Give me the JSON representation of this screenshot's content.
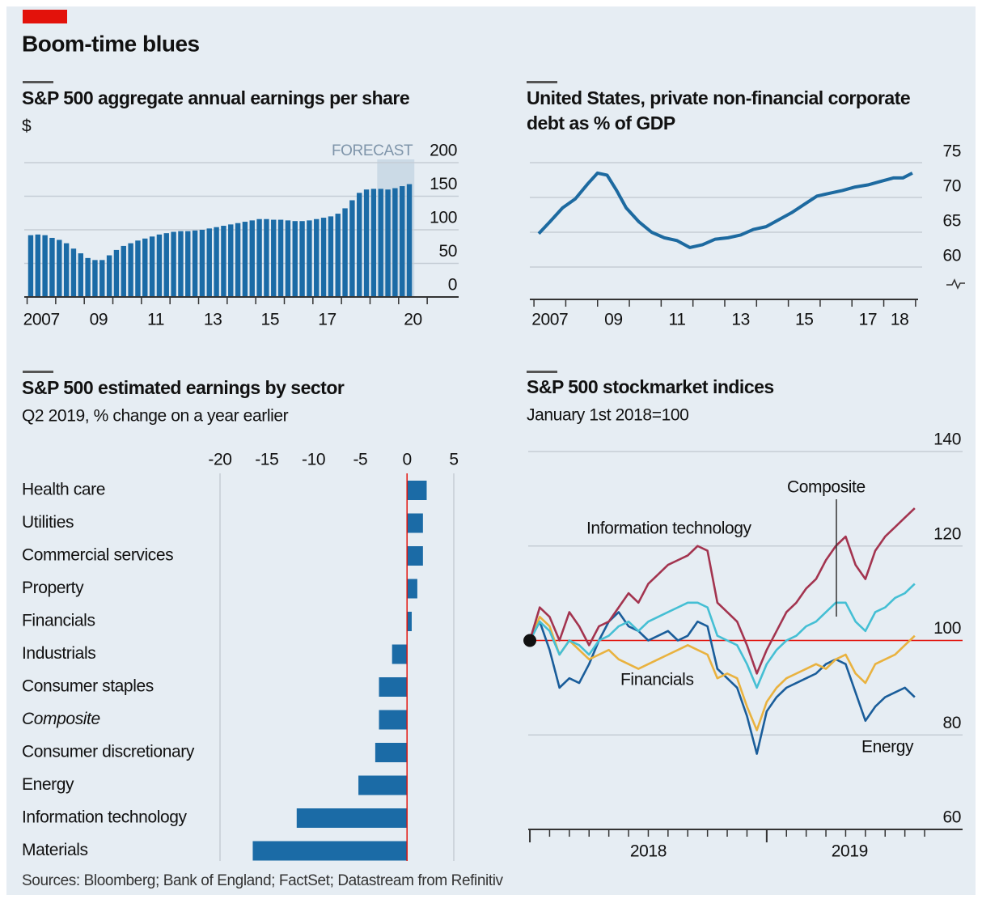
{
  "title": "Boom-time blues",
  "source": "Sources: Bloomberg; Bank of England; FactSet; Datastream from Refinitiv",
  "chart_data": [
    {
      "type": "bar",
      "title": "S&P 500 aggregate annual earnings per share",
      "subtitle": "$",
      "x": [
        2007.125,
        2007.375,
        2007.625,
        2007.875,
        2008.125,
        2008.375,
        2008.625,
        2008.875,
        2009.125,
        2009.375,
        2009.625,
        2009.875,
        2010.125,
        2010.375,
        2010.625,
        2010.875,
        2011.125,
        2011.375,
        2011.625,
        2011.875,
        2012.125,
        2012.375,
        2012.625,
        2012.875,
        2013.125,
        2013.375,
        2013.625,
        2013.875,
        2014.125,
        2014.375,
        2014.625,
        2014.875,
        2015.125,
        2015.375,
        2015.625,
        2015.875,
        2016.125,
        2016.375,
        2016.625,
        2016.875,
        2017.125,
        2017.375,
        2017.625,
        2017.875,
        2018.125,
        2018.375,
        2018.625,
        2018.875,
        2019.125,
        2019.375,
        2019.625,
        2019.875,
        2020.125,
        2020.375
      ],
      "values": [
        92,
        93,
        92,
        88,
        85,
        80,
        72,
        65,
        58,
        55,
        55,
        62,
        70,
        76,
        80,
        84,
        87,
        90,
        93,
        95,
        97,
        98,
        98,
        99,
        100,
        102,
        104,
        106,
        108,
        110,
        112,
        114,
        116,
        116,
        115,
        115,
        114,
        113,
        113,
        114,
        116,
        118,
        120,
        124,
        132,
        144,
        155,
        160,
        161,
        161,
        160,
        162,
        165,
        168
      ],
      "color": "#1b6ba6",
      "xlim": [
        2006.9,
        2022.1
      ],
      "ylim": [
        0,
        200
      ],
      "yticks": [
        0,
        50,
        100,
        150,
        200
      ],
      "xticks": [
        {
          "value": 2007.5,
          "label": "2007"
        },
        {
          "value": 2009.5,
          "label": "09"
        },
        {
          "value": 2011.5,
          "label": "11"
        },
        {
          "value": 2013.5,
          "label": "13"
        },
        {
          "value": 2015.5,
          "label": "15"
        },
        {
          "value": 2017.5,
          "label": "17"
        },
        {
          "value": 2020.5,
          "label": "20"
        }
      ],
      "xminorticks": [
        2007,
        2008,
        2009,
        2010,
        2011,
        2012,
        2013,
        2014,
        2015,
        2016,
        2017,
        2018,
        2019,
        2020,
        2021
      ],
      "forecast": {
        "label": "FORECAST",
        "xlim": [
          2019.25,
          2020.55
        ]
      },
      "grid": true
    },
    {
      "type": "line",
      "title": "United States, private non-financial corporate debt as % of GDP",
      "x": [
        2007.15,
        2007.5,
        2007.9,
        2008.3,
        2008.7,
        2009.0,
        2009.3,
        2009.6,
        2009.9,
        2010.3,
        2010.7,
        2011.1,
        2011.5,
        2011.9,
        2012.3,
        2012.7,
        2013.1,
        2013.5,
        2013.9,
        2014.3,
        2014.7,
        2015.1,
        2015.5,
        2015.9,
        2016.3,
        2016.7,
        2017.1,
        2017.5,
        2017.9,
        2018.3,
        2018.6,
        2018.9
      ],
      "values": [
        64.8,
        66.5,
        68.5,
        69.8,
        72.0,
        73.5,
        73.2,
        71.0,
        68.5,
        66.5,
        65.0,
        64.2,
        63.8,
        62.8,
        63.2,
        64.0,
        64.2,
        64.6,
        65.4,
        65.8,
        66.8,
        67.8,
        69.0,
        70.2,
        70.6,
        71.0,
        71.5,
        71.8,
        72.3,
        72.8,
        72.8,
        73.5
      ],
      "color": "#1d6aa0",
      "xlim": [
        2006.87,
        2019.08
      ],
      "ylim": [
        56,
        76
      ],
      "yticks": [
        60,
        65,
        70,
        75
      ],
      "xticks": [
        {
          "value": 2007.5,
          "label": "2007"
        },
        {
          "value": 2009.5,
          "label": "09"
        },
        {
          "value": 2011.5,
          "label": "11"
        },
        {
          "value": 2013.5,
          "label": "13"
        },
        {
          "value": 2015.5,
          "label": "15"
        },
        {
          "value": 2017.5,
          "label": "17"
        },
        {
          "value": 2018.5,
          "label": "18"
        }
      ],
      "xminorticks": [
        2007,
        2008,
        2009,
        2010,
        2011,
        2012,
        2013,
        2014,
        2015,
        2016,
        2017,
        2018,
        2019
      ],
      "axis_break": true,
      "grid": true
    },
    {
      "type": "hbar",
      "title": "S&P 500 estimated earnings by sector",
      "subtitle": "Q2 2019, % change on a year earlier",
      "categories": [
        "Health care",
        "Utilities",
        "Commercial services",
        "Property",
        "Financials",
        "Industrials",
        "Consumer staples",
        "Composite",
        "Consumer discretionary",
        "Energy",
        "Information technology",
        "Materials"
      ],
      "values": [
        2.1,
        1.7,
        1.7,
        1.1,
        0.5,
        -1.6,
        -3.0,
        -3.0,
        -3.4,
        -5.2,
        -11.8,
        -16.5
      ],
      "italic_index": 7,
      "color": "#1b6ba6",
      "zero_line_color": "#e3120b",
      "xlim": [
        -20,
        5
      ],
      "xticks": [
        -20,
        -15,
        -10,
        -5,
        0,
        5
      ]
    },
    {
      "type": "line",
      "title": "S&P 500 stockmarket indices",
      "subtitle": "January 1st 2018=100",
      "x": [
        2018,
        2018.0417,
        2018.0833,
        2018.125,
        2018.1667,
        2018.2083,
        2018.25,
        2018.2917,
        2018.3333,
        2018.375,
        2018.4167,
        2018.4583,
        2018.5,
        2018.5417,
        2018.5833,
        2018.625,
        2018.6667,
        2018.7083,
        2018.75,
        2018.7917,
        2018.8333,
        2018.875,
        2018.9167,
        2018.9583,
        2019,
        2019.0417,
        2019.0833,
        2019.125,
        2019.1667,
        2019.2083,
        2019.25,
        2019.2917,
        2019.3333,
        2019.375,
        2019.4167,
        2019.4583,
        2019.5,
        2019.5417,
        2019.5833,
        2019.625
      ],
      "series": [
        {
          "name": "Information technology",
          "color": "#a3344f",
          "values": [
            100,
            107,
            105,
            100,
            106,
            103,
            99,
            103,
            104,
            107,
            110,
            108,
            112,
            114,
            116,
            117,
            118,
            120,
            119,
            108,
            106,
            104,
            99,
            93,
            98,
            102,
            106,
            108,
            111,
            113,
            117,
            120,
            122,
            116,
            113,
            119,
            122,
            124,
            126,
            128
          ]
        },
        {
          "name": "Composite",
          "color": "#45bfd4",
          "values": [
            100,
            104,
            102,
            97,
            100,
            99,
            97,
            100,
            101,
            103,
            104,
            102,
            104,
            105,
            106,
            107,
            108,
            108,
            107,
            101,
            100,
            99,
            95,
            90,
            95,
            98,
            100,
            101,
            103,
            104,
            106,
            108,
            108,
            104,
            102,
            106,
            107,
            109,
            110,
            112
          ]
        },
        {
          "name": "Financials",
          "color": "#e9b23f",
          "values": [
            100,
            105,
            103,
            97,
            100,
            98,
            96,
            97,
            98,
            96,
            95,
            94,
            95,
            96,
            97,
            98,
            99,
            98,
            97,
            92,
            93,
            92,
            86,
            81,
            87,
            90,
            92,
            93,
            94,
            95,
            94,
            96,
            97,
            93,
            91,
            95,
            96,
            97,
            99,
            101
          ]
        },
        {
          "name": "Energy",
          "color": "#1a5d9a",
          "values": [
            100,
            104,
            98,
            90,
            92,
            91,
            95,
            100,
            104,
            106,
            103,
            102,
            100,
            101,
            102,
            100,
            101,
            104,
            103,
            94,
            92,
            90,
            84,
            76,
            85,
            88,
            90,
            91,
            92,
            93,
            95,
            96,
            95,
            89,
            83,
            86,
            88,
            89,
            90,
            88
          ]
        }
      ],
      "xlim": [
        2017.993,
        2019.827
      ],
      "ylim": [
        60,
        140
      ],
      "yticks": [
        60,
        80,
        100,
        120,
        140
      ],
      "baseline": 100,
      "baseline_color": "#e3120b",
      "xticks": [
        {
          "value": 2018.5,
          "label": "2018"
        },
        {
          "value": 2019.35,
          "label": "2019"
        }
      ],
      "xmajorticks": [
        2018,
        2019
      ],
      "xminorticks": [
        2018,
        2018.0833,
        2018.1667,
        2018.25,
        2018.3333,
        2018.4167,
        2018.5,
        2018.5833,
        2018.6667,
        2018.75,
        2018.8333,
        2018.9167,
        2019,
        2019.0833,
        2019.1667,
        2019.25,
        2019.3333,
        2019.4167,
        2019.5,
        2019.5833,
        2019.6667
      ],
      "grid": true
    }
  ]
}
